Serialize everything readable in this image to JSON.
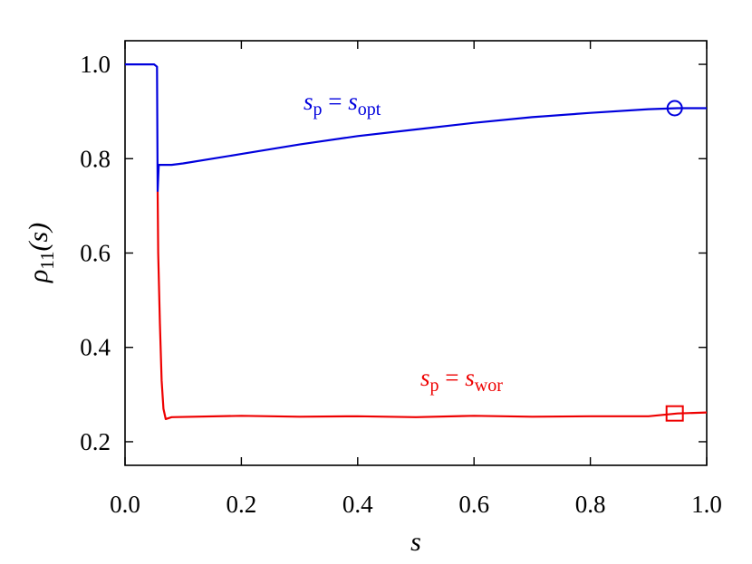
{
  "chart_data": {
    "type": "line",
    "xlabel": "s",
    "ylabel": {
      "base": "ρ",
      "sub": "11",
      "rest": "(s)"
    },
    "xlim": [
      0.0,
      1.0
    ],
    "ylim": [
      0.15,
      1.05
    ],
    "x_ticks": [
      "0.0",
      "0.2",
      "0.4",
      "0.6",
      "0.8",
      "1.0"
    ],
    "y_ticks": [
      "0.2",
      "0.4",
      "0.6",
      "0.8",
      "1.0"
    ],
    "grid": false,
    "series": [
      {
        "name": "s_p = s_opt",
        "label_parts": {
          "s1": "s",
          "sub1": "p",
          "eq": " = ",
          "s2": "s",
          "sub2": "opt"
        },
        "color": "#0000dd",
        "marker": "circle",
        "marker_point": [
          0.945,
          0.907
        ],
        "points": [
          [
            0.0,
            1.0
          ],
          [
            0.05,
            1.0
          ],
          [
            0.055,
            0.995
          ],
          [
            0.056,
            0.73
          ],
          [
            0.058,
            0.787
          ],
          [
            0.08,
            0.787
          ],
          [
            0.1,
            0.79
          ],
          [
            0.2,
            0.81
          ],
          [
            0.3,
            0.83
          ],
          [
            0.4,
            0.848
          ],
          [
            0.5,
            0.862
          ],
          [
            0.6,
            0.876
          ],
          [
            0.7,
            0.888
          ],
          [
            0.8,
            0.897
          ],
          [
            0.9,
            0.905
          ],
          [
            0.95,
            0.907
          ],
          [
            1.0,
            0.907
          ]
        ]
      },
      {
        "name": "s_p = s_wor",
        "label_parts": {
          "s1": "s",
          "sub1": "p",
          "eq": " = ",
          "s2": "s",
          "sub2": "wor"
        },
        "color": "#ee0000",
        "marker": "square",
        "marker_point": [
          0.945,
          0.26
        ],
        "points": [
          [
            0.056,
            0.73
          ],
          [
            0.057,
            0.6
          ],
          [
            0.06,
            0.45
          ],
          [
            0.063,
            0.33
          ],
          [
            0.066,
            0.27
          ],
          [
            0.07,
            0.248
          ],
          [
            0.08,
            0.252
          ],
          [
            0.2,
            0.255
          ],
          [
            0.3,
            0.253
          ],
          [
            0.4,
            0.254
          ],
          [
            0.5,
            0.252
          ],
          [
            0.6,
            0.255
          ],
          [
            0.7,
            0.253
          ],
          [
            0.8,
            0.254
          ],
          [
            0.9,
            0.254
          ],
          [
            0.95,
            0.26
          ],
          [
            1.0,
            0.262
          ]
        ]
      }
    ]
  }
}
